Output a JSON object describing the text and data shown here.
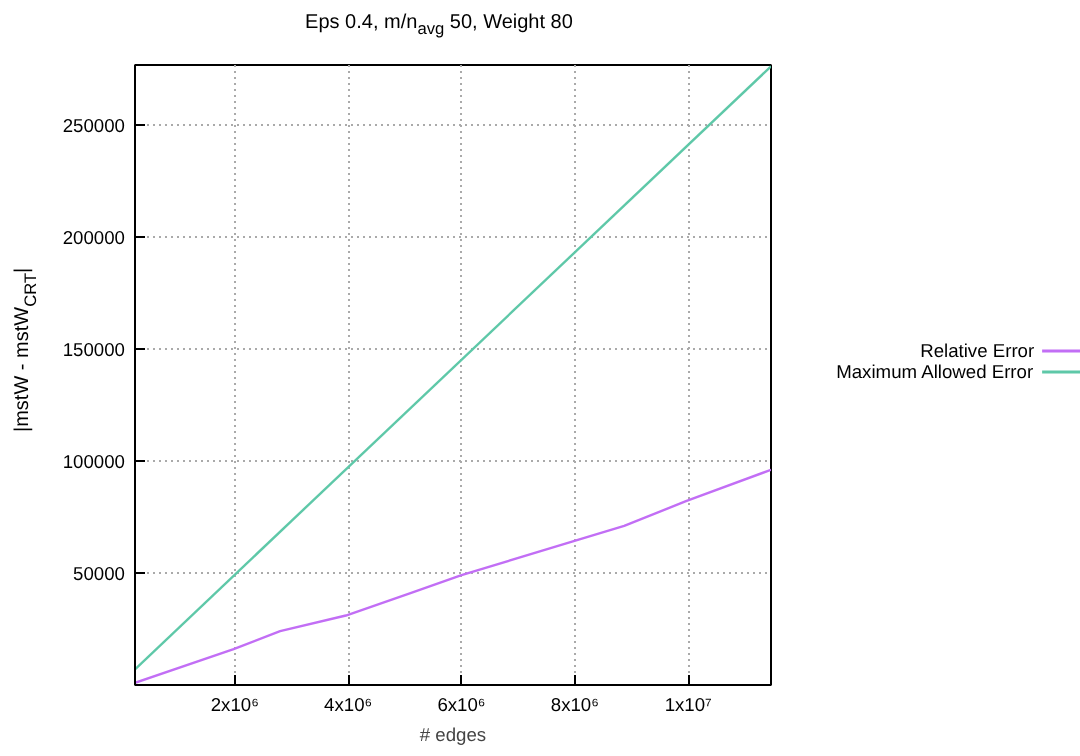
{
  "chart_data": {
    "type": "line",
    "title": "Eps 0.4, m/n$_{avg}$ 50, Weight 80",
    "xlabel": "# edges",
    "ylabel": "|mstW - mstW$_{CRT}$|",
    "series": [
      {
        "name": "Relative Error",
        "color": "#c26ef5",
        "x": [
          240000,
          1980000,
          2800000,
          3960000,
          5100000,
          6000000,
          7950000,
          8870000,
          9960000,
          11460000
        ],
        "values": [
          1000,
          16000,
          24000,
          31000,
          41000,
          49000,
          64000,
          71000,
          82000,
          96000
        ]
      },
      {
        "name": "Maximum Allowed Error",
        "color": "#5ec8a8",
        "x": [
          240000,
          11460000
        ],
        "values": [
          7000,
          276000
        ]
      }
    ],
    "xlim": [
      240000,
      11460000
    ],
    "ylim": [
      0,
      276600
    ],
    "xticks": [
      {
        "value": 2000000,
        "label": "2x10⁶"
      },
      {
        "value": 4000000,
        "label": "4x10⁶"
      },
      {
        "value": 6000000,
        "label": "6x10⁶"
      },
      {
        "value": 8000000,
        "label": "8x10⁶"
      },
      {
        "value": 10000000,
        "label": "1x10⁷"
      }
    ],
    "yticks": [
      50000,
      100000,
      150000,
      200000,
      250000
    ],
    "grid": true,
    "legend": "right",
    "marker": "none",
    "line_style": "solid"
  }
}
